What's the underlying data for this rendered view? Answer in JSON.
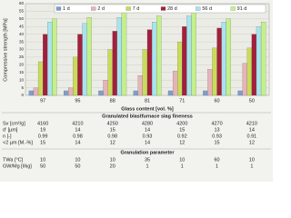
{
  "chart_data": {
    "type": "bar",
    "y_label": "Compressive strength [MPa]",
    "x_label": "Glass content [vol. %]",
    "categories": [
      "97",
      "95",
      "88",
      "81",
      "71",
      "60",
      "50"
    ],
    "series": [
      {
        "name": "1 d",
        "color": "#7d9fd0",
        "values": [
          3,
          3,
          3,
          3,
          3,
          3,
          3
        ]
      },
      {
        "name": "2 d",
        "color": "#e6b4b8",
        "values": [
          5,
          5,
          10,
          13,
          16,
          17,
          21
        ]
      },
      {
        "name": "7 d",
        "color": "#c9dc5a",
        "values": [
          22,
          25,
          30,
          30,
          35,
          31,
          31
        ]
      },
      {
        "name": "28 d",
        "color": "#a3203c",
        "values": [
          40,
          40,
          42,
          43,
          45,
          44,
          40
        ]
      },
      {
        "name": "56 d",
        "color": "#a8e4ee",
        "values": [
          48,
          47,
          51,
          48,
          52,
          48,
          45
        ]
      },
      {
        "name": "91 d",
        "color": "#c4f08a",
        "values": [
          50,
          51,
          55,
          52,
          55,
          50,
          48
        ]
      }
    ],
    "ylim": [
      0,
      60
    ],
    "yticks": [
      0,
      5,
      10,
      15,
      20,
      25,
      30,
      35,
      40,
      45,
      50,
      55,
      60
    ],
    "grid": true
  },
  "table": {
    "sections": [
      {
        "title": "Granulated blastfurnace slag fineness",
        "rows": [
          {
            "label": "Sv [cm²/g]",
            "values": [
              "4160",
              "4210",
              "4250",
              "4280",
              "4200",
              "4270",
              "4210"
            ]
          },
          {
            "label": "d' [µm]",
            "values": [
              "19",
              "14",
              "15",
              "14",
              "15",
              "13",
              "14"
            ]
          },
          {
            "label": "n [-]",
            "values": [
              "0.99",
              "0.98",
              "0.98",
              "0.93",
              "0.92",
              "0.93",
              "0.91"
            ]
          },
          {
            "label": "<2 µm [M.-%]",
            "values": [
              "15",
              "14",
              "12",
              "14",
              "12",
              "15",
              "12"
            ]
          }
        ]
      },
      {
        "title": "Granulation parameter",
        "rows": [
          {
            "label": "TWa [°C]",
            "values": [
              "10",
              "10",
              "10",
              "35",
              "10",
              "60",
              "10"
            ]
          },
          {
            "label": "GW/Mg [l/kg]",
            "values": [
              "50",
              "50",
              "20",
              "1",
              "1",
              "1",
              "1"
            ]
          }
        ]
      }
    ]
  }
}
